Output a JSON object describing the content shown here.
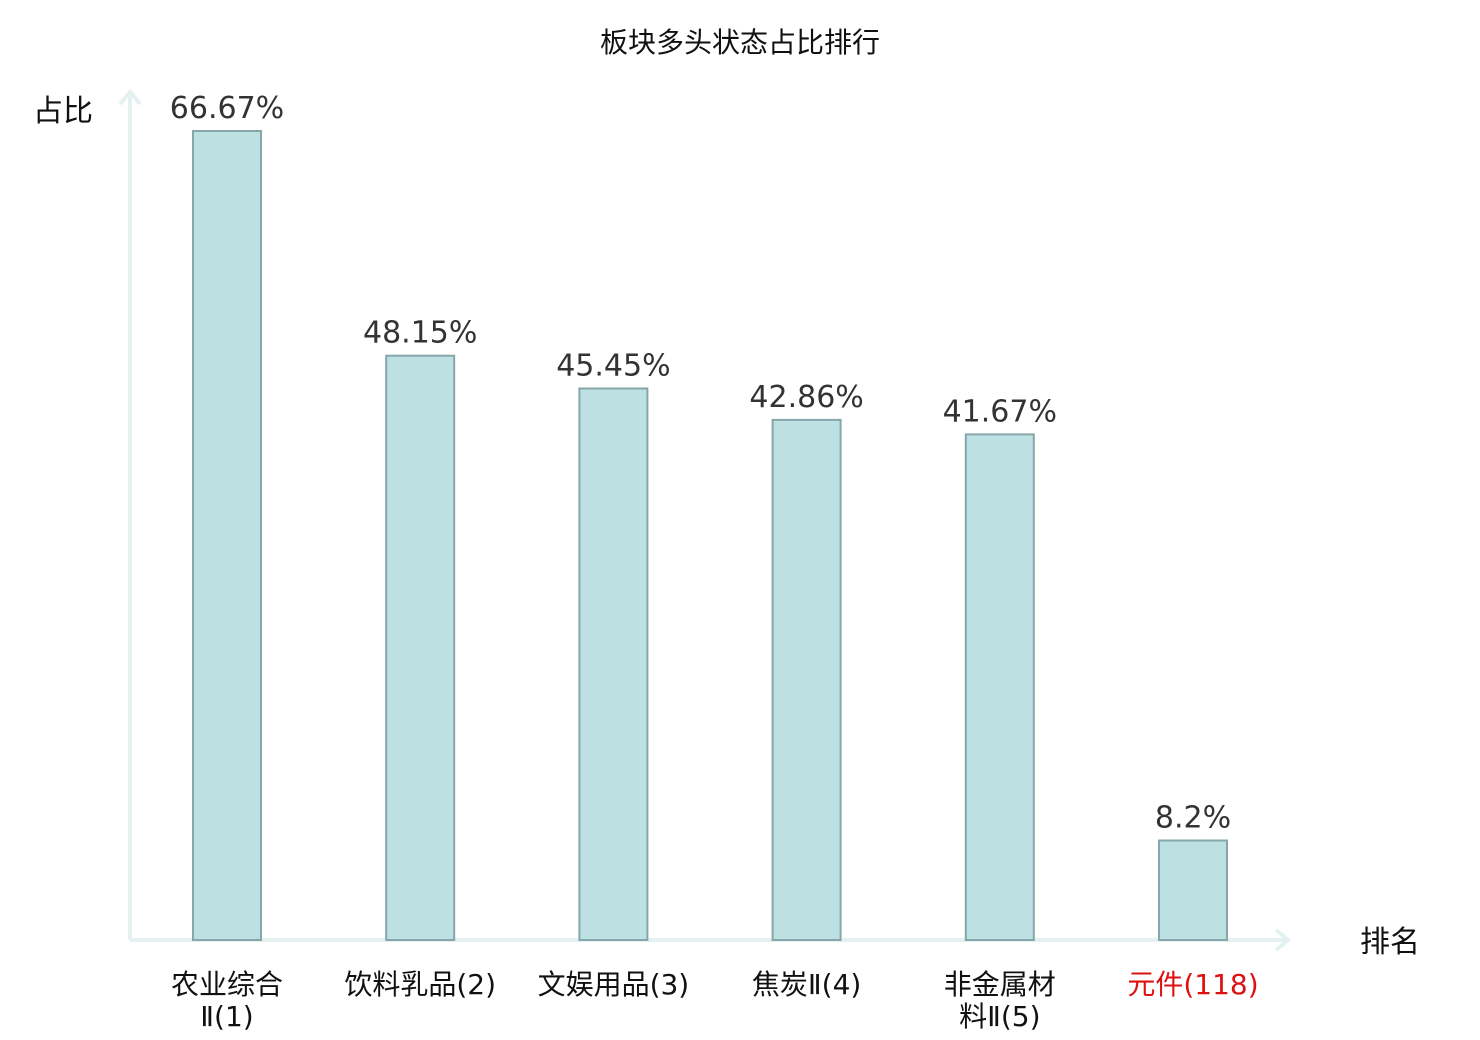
{
  "chart_data": {
    "type": "bar",
    "title": "板块多头状态占比排行",
    "ylabel": "占比",
    "xlabel": "排名",
    "ylim": [
      0,
      80
    ],
    "categories": [
      {
        "name": "农业综合Ⅱ",
        "rank": "(1)",
        "lines": [
          "农业综合",
          "Ⅱ(1)"
        ],
        "highlight": false
      },
      {
        "name": "饮料乳品",
        "rank": "(2)",
        "lines": [
          "饮料乳品(2)"
        ],
        "highlight": false
      },
      {
        "name": "文娱用品",
        "rank": "(3)",
        "lines": [
          "文娱用品(3)"
        ],
        "highlight": false
      },
      {
        "name": "焦炭Ⅱ",
        "rank": "(4)",
        "lines": [
          "焦炭Ⅱ(4)"
        ],
        "highlight": false
      },
      {
        "name": "非金属材料Ⅱ",
        "rank": "(5)",
        "lines": [
          "非金属材",
          "料Ⅱ(5)"
        ],
        "highlight": false
      },
      {
        "name": "元件",
        "rank": "(118)",
        "lines": [
          "元件(118)"
        ],
        "highlight": true
      }
    ],
    "values": [
      66.67,
      48.15,
      45.45,
      42.86,
      41.67,
      8.2
    ],
    "value_labels": [
      "66.67%",
      "48.15%",
      "45.45%",
      "42.86%",
      "41.67%",
      "8.2%"
    ],
    "grid": false,
    "colors": {
      "bar": "#bde0e3",
      "bar_edge": "#86a7aa",
      "axis": "#e3f2f1",
      "highlight_text": "#dd1111"
    }
  }
}
